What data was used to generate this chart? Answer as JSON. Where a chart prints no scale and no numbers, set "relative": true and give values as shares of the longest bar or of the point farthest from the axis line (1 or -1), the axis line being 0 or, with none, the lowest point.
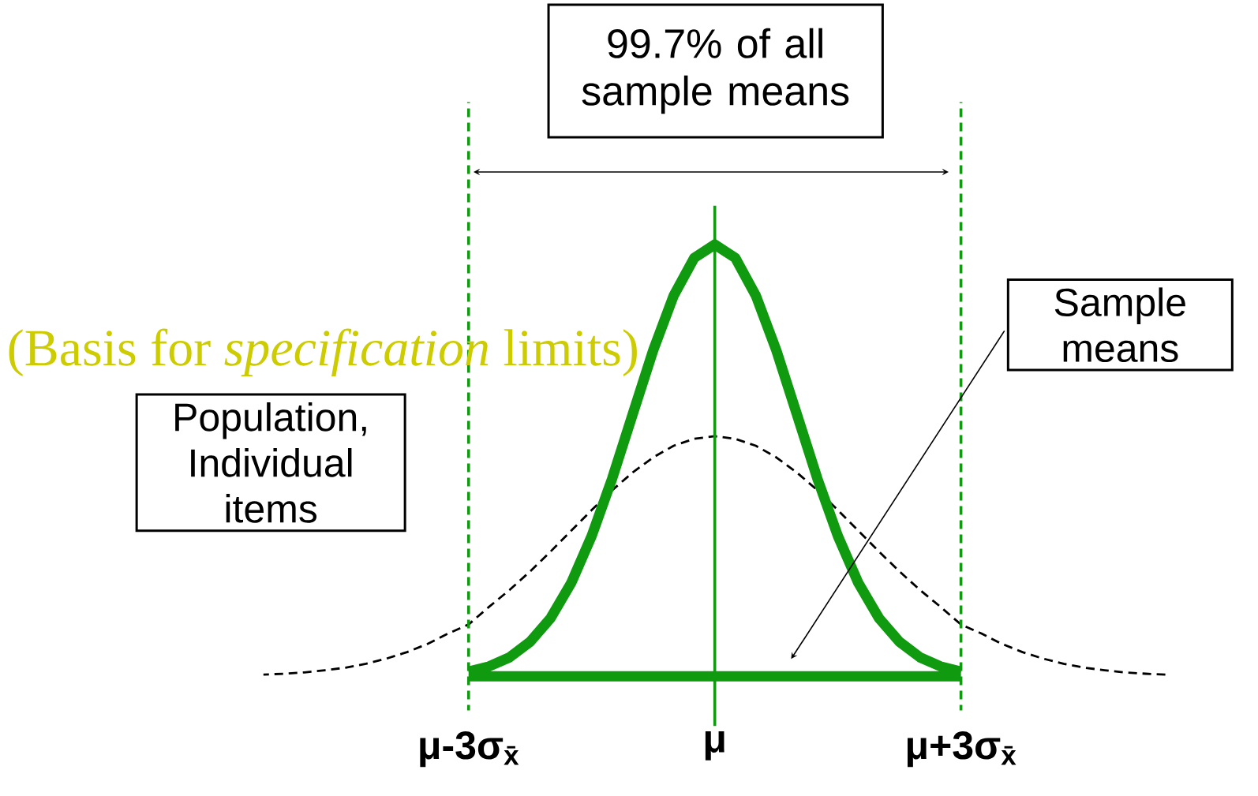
{
  "chart_data": {
    "type": "line",
    "relative": true,
    "tick_labels": "x",
    "categories": [
      null,
      null,
      null,
      null,
      null,
      null,
      null,
      null,
      null,
      null,
      "μ-3σ$_{x̄}$",
      null,
      null,
      null,
      null,
      null,
      null,
      null,
      null,
      null,
      null,
      null,
      "μ",
      null,
      null,
      null,
      null,
      null,
      null,
      null,
      null,
      null,
      null,
      null,
      "μ+3σ$_{x̄}$",
      null,
      null,
      null,
      null,
      null,
      null,
      null,
      null,
      null,
      null
    ],
    "series": [
      {
        "name": "Population, Individual items",
        "color": "#000000",
        "line_style": "dashed",
        "values": [
          0.004,
          0.006,
          0.009,
          0.014,
          0.02,
          0.029,
          0.041,
          0.056,
          0.075,
          0.099,
          0.12,
          0.161,
          0.2,
          0.243,
          0.289,
          0.337,
          0.385,
          0.431,
          0.472,
          0.507,
          0.534,
          0.55,
          0.556,
          0.55,
          0.534,
          0.507,
          0.472,
          0.431,
          0.385,
          0.337,
          0.289,
          0.243,
          0.2,
          0.161,
          0.12,
          0.099,
          0.075,
          0.056,
          0.041,
          0.029,
          0.02,
          0.014,
          0.009,
          0.006,
          0.004
        ]
      },
      {
        "name": "Sample means",
        "color": "#109a10",
        "line_style": "solid",
        "values": [
          null,
          null,
          null,
          null,
          null,
          null,
          null,
          null,
          null,
          null,
          0.011,
          0.023,
          0.044,
          0.08,
          0.135,
          0.216,
          0.325,
          0.458,
          0.607,
          0.755,
          0.882,
          0.969,
          1,
          0.969,
          0.882,
          0.755,
          0.607,
          0.458,
          0.325,
          0.216,
          0.135,
          0.08,
          0.044,
          0.023,
          0.011,
          null,
          null,
          null,
          null,
          null,
          null,
          null,
          null,
          null,
          null
        ]
      },
      {
        "color": "#109a10",
        "line_style": "solid",
        "values": [
          null,
          null,
          null,
          null,
          null,
          null,
          null,
          null,
          null,
          null,
          0,
          0,
          0,
          0,
          0,
          0,
          0,
          0,
          0,
          0,
          0,
          0,
          0,
          0,
          0,
          0,
          0,
          0,
          0,
          0,
          0,
          0,
          0,
          0,
          0,
          null,
          null,
          null,
          null,
          null,
          null,
          null,
          null,
          null,
          null
        ]
      }
    ],
    "ref_lines": [
      {
        "axis": "x",
        "value": "μ-3σ$_{x̄}$",
        "color": "#109a10",
        "line_style": "dashed"
      },
      {
        "axis": "x",
        "value": "μ",
        "color": "#109a10",
        "line_style": "solid"
      },
      {
        "axis": "x",
        "value": "μ+3σ$_{x̄}$",
        "color": "#109a10",
        "line_style": "dashed"
      }
    ],
    "annotations": [
      "99.7% of all sample means",
      "(Basis for *specification* limits)"
    ]
  }
}
